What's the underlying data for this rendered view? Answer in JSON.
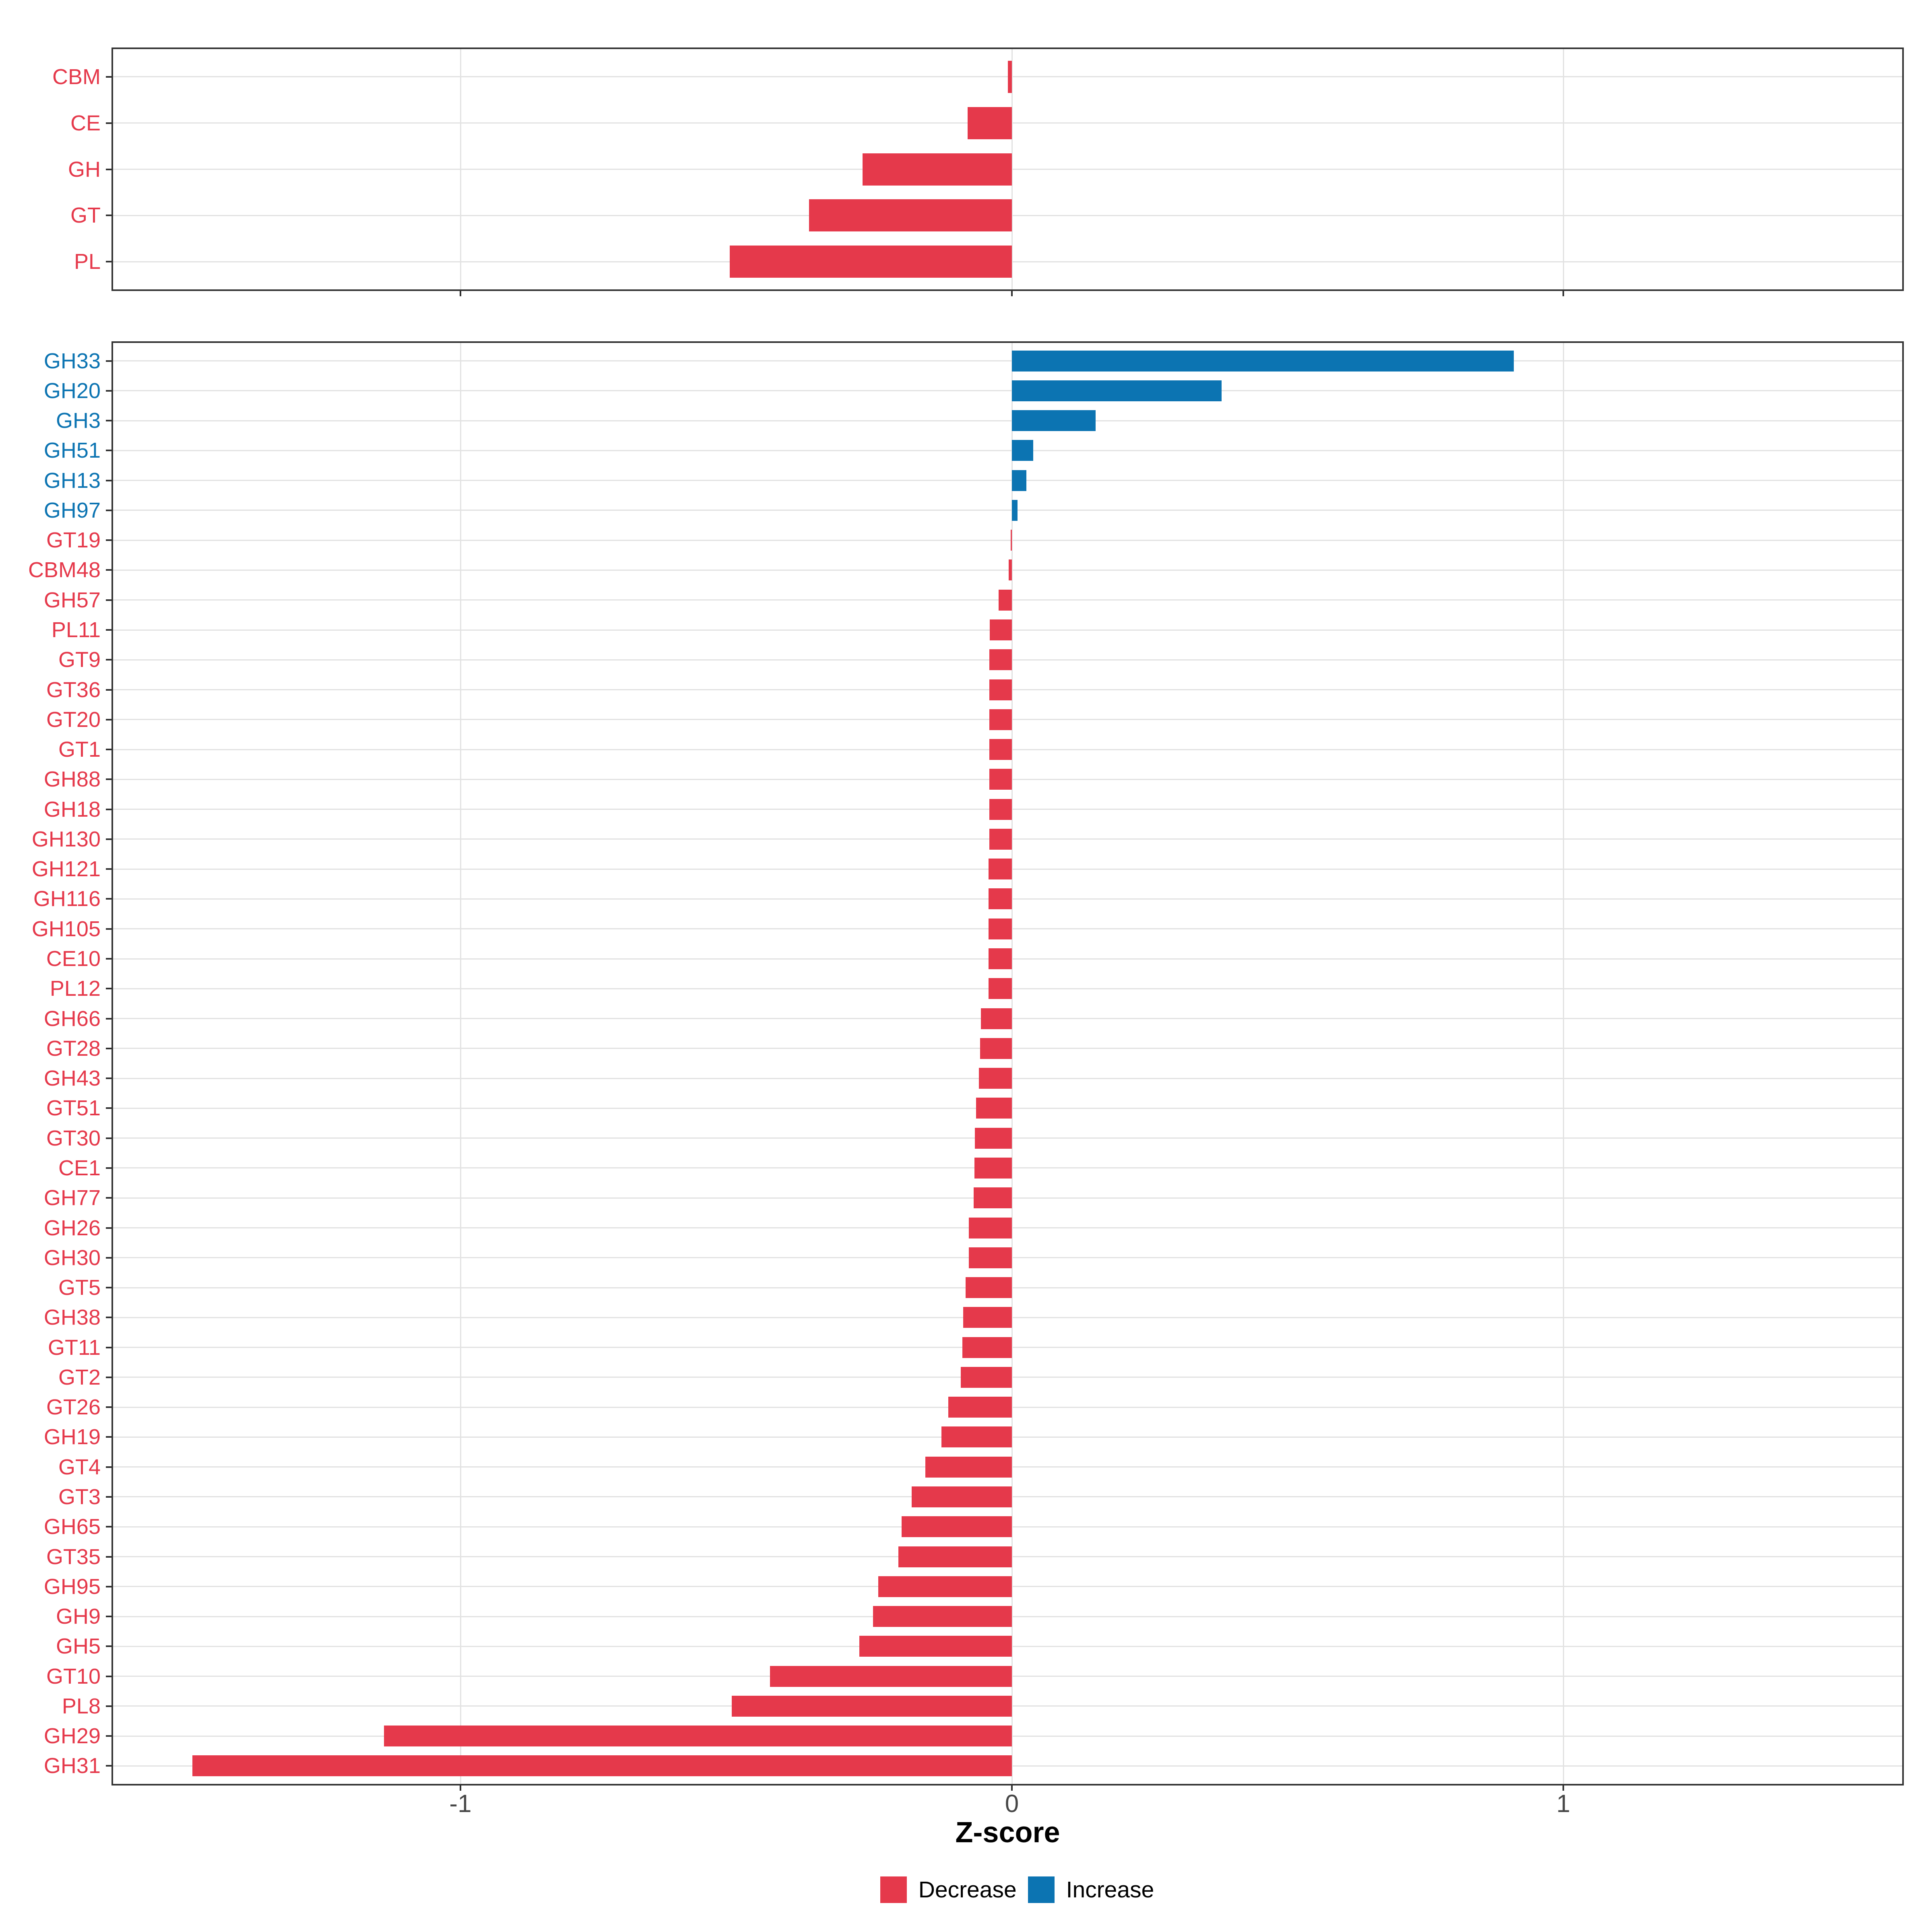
{
  "chart_data": {
    "type": "bar",
    "orientation": "horizontal",
    "xlabel": "Z-score",
    "x_ticks": [
      -1,
      0,
      1
    ],
    "x_tick_labels": [
      "-1",
      "0",
      "1"
    ],
    "xlim": [
      -1.64,
      1.62
    ],
    "grid": "major-only",
    "legend_position": "bottom",
    "panels": [
      {
        "name": "enzyme-classes",
        "categories": [
          "CBM",
          "CE",
          "GH",
          "GT",
          "PL"
        ],
        "values": [
          -0.007,
          -0.08,
          -0.271,
          -0.368,
          -0.512
        ]
      },
      {
        "name": "enzyme-families",
        "categories": [
          "GH33",
          "GH20",
          "GH3",
          "GH51",
          "GH13",
          "GH97",
          "GT19",
          "CBM48",
          "GH57",
          "PL11",
          "GT9",
          "GT36",
          "GT20",
          "GT1",
          "GH88",
          "GH18",
          "GH130",
          "GH121",
          "GH116",
          "GH105",
          "CE10",
          "PL12",
          "GH66",
          "GT28",
          "GH43",
          "GT51",
          "GT30",
          "CE1",
          "GH77",
          "GH26",
          "GH30",
          "GT5",
          "GH38",
          "GT11",
          "GT2",
          "GT26",
          "GH19",
          "GT4",
          "GT3",
          "GH65",
          "GT35",
          "GH95",
          "GH9",
          "GH5",
          "GT10",
          "PL8",
          "GH29",
          "GH31"
        ],
        "values": [
          0.91,
          0.38,
          0.152,
          0.039,
          0.026,
          0.01,
          -0.002,
          -0.006,
          -0.024,
          -0.04,
          -0.041,
          -0.041,
          -0.041,
          -0.041,
          -0.041,
          -0.041,
          -0.041,
          -0.042,
          -0.042,
          -0.042,
          -0.042,
          -0.042,
          -0.056,
          -0.058,
          -0.06,
          -0.065,
          -0.067,
          -0.068,
          -0.069,
          -0.078,
          -0.078,
          -0.084,
          -0.088,
          -0.09,
          -0.093,
          -0.115,
          -0.128,
          -0.157,
          -0.182,
          -0.2,
          -0.206,
          -0.242,
          -0.252,
          -0.277,
          -0.439,
          -0.508,
          -1.139,
          -1.486
        ]
      }
    ]
  },
  "legend": {
    "items": [
      {
        "label": "Decrease",
        "color": "#E5394B"
      },
      {
        "label": "Increase",
        "color": "#0C74B2"
      }
    ]
  },
  "colors": {
    "decrease": "#E5394B",
    "increase": "#0C74B2",
    "grid": "#E2E2E2",
    "panel_border": "#333333",
    "tick": "#2F2F2F",
    "axis_text": "#474747"
  }
}
